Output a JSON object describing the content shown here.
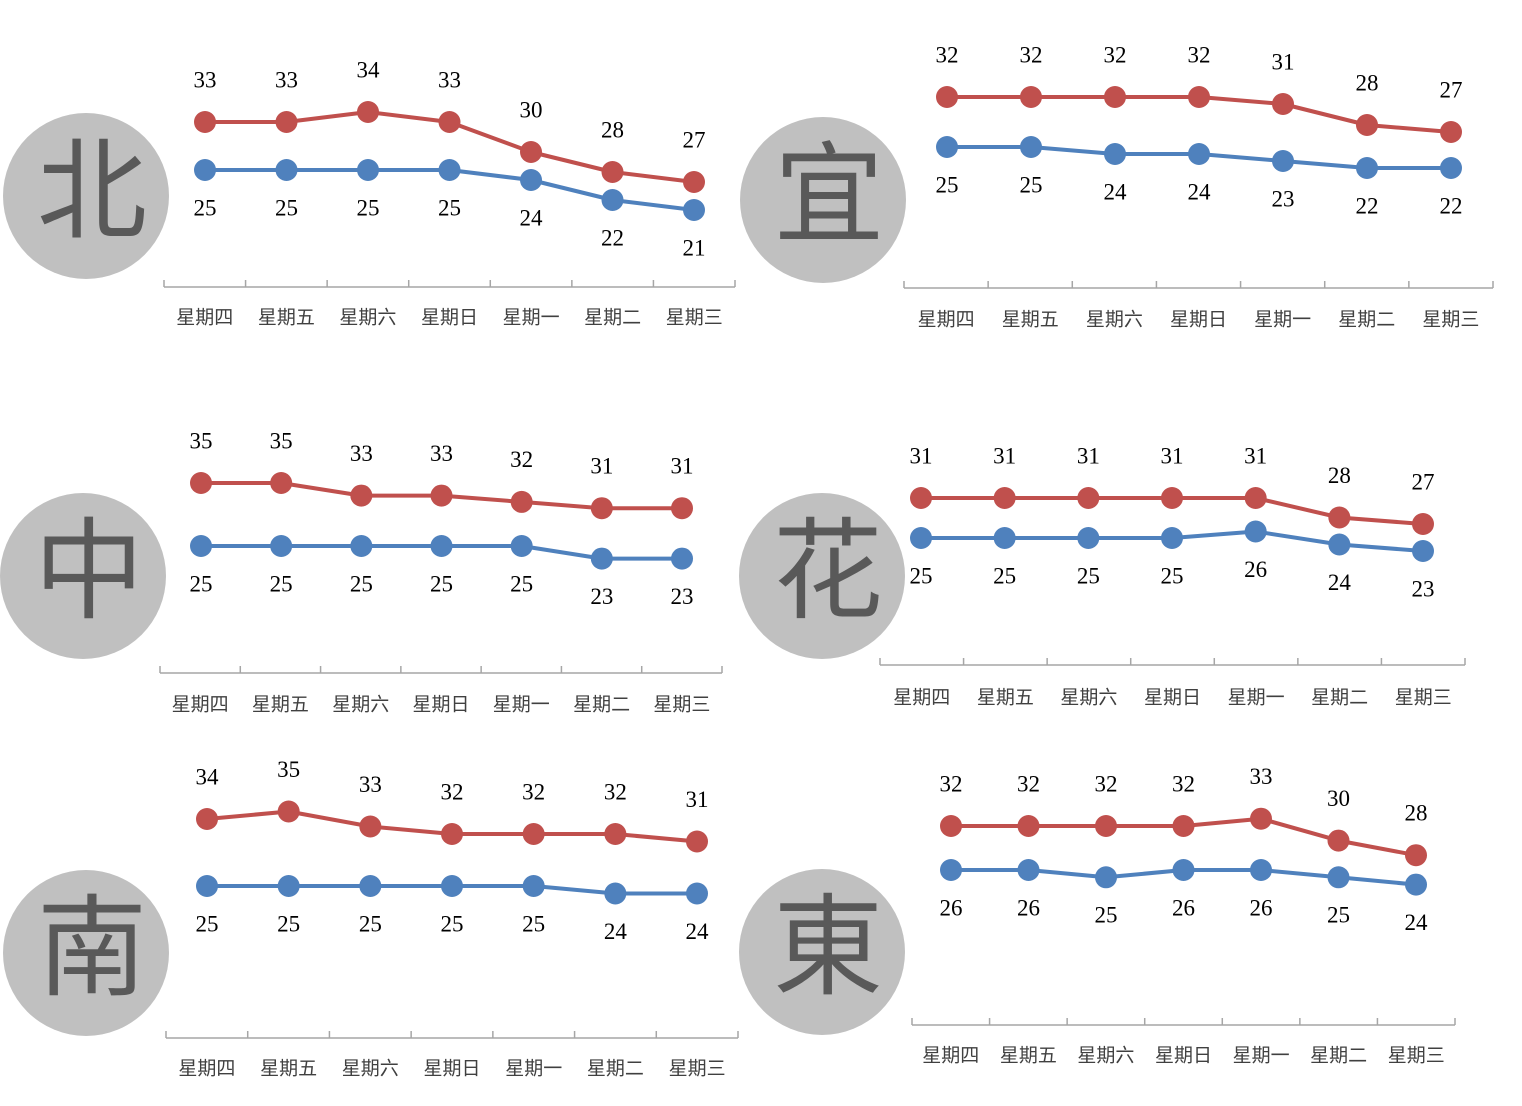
{
  "colors": {
    "high": "#c0504d",
    "low": "#4f81bd",
    "badge_fill": "#c0c0c0",
    "badge_text": "#595959",
    "axis": "#a6a6a6"
  },
  "chart_data": [
    {
      "type": "line",
      "region": "北",
      "categories": [
        "星期四",
        "星期五",
        "星期六",
        "星期日",
        "星期一",
        "星期二",
        "星期三"
      ],
      "series": [
        {
          "values": [
            33,
            33,
            34,
            33,
            30,
            28,
            27
          ]
        },
        {
          "values": [
            25,
            25,
            25,
            25,
            24,
            22,
            21
          ]
        }
      ]
    },
    {
      "type": "line",
      "region": "宜",
      "categories": [
        "星期四",
        "星期五",
        "星期六",
        "星期日",
        "星期一",
        "星期二",
        "星期三"
      ],
      "series": [
        {
          "values": [
            32,
            32,
            32,
            32,
            31,
            28,
            27
          ]
        },
        {
          "values": [
            25,
            25,
            24,
            24,
            23,
            22,
            22
          ]
        }
      ]
    },
    {
      "type": "line",
      "region": "中",
      "categories": [
        "星期四",
        "星期五",
        "星期六",
        "星期日",
        "星期一",
        "星期二",
        "星期三"
      ],
      "series": [
        {
          "values": [
            35,
            35,
            33,
            33,
            32,
            31,
            31
          ]
        },
        {
          "values": [
            25,
            25,
            25,
            25,
            25,
            23,
            23
          ]
        }
      ]
    },
    {
      "type": "line",
      "region": "花",
      "categories": [
        "星期四",
        "星期五",
        "星期六",
        "星期日",
        "星期一",
        "星期二",
        "星期三"
      ],
      "series": [
        {
          "values": [
            31,
            31,
            31,
            31,
            31,
            28,
            27
          ]
        },
        {
          "values": [
            25,
            25,
            25,
            25,
            26,
            24,
            23
          ]
        }
      ]
    },
    {
      "type": "line",
      "region": "南",
      "categories": [
        "星期四",
        "星期五",
        "星期六",
        "星期日",
        "星期一",
        "星期二",
        "星期三"
      ],
      "series": [
        {
          "values": [
            34,
            35,
            33,
            32,
            32,
            32,
            31
          ]
        },
        {
          "values": [
            25,
            25,
            25,
            25,
            25,
            24,
            24
          ]
        }
      ]
    },
    {
      "type": "line",
      "region": "東",
      "categories": [
        "星期四",
        "星期五",
        "星期六",
        "星期日",
        "星期一",
        "星期二",
        "星期三"
      ],
      "series": [
        {
          "values": [
            32,
            32,
            32,
            32,
            33,
            30,
            28
          ]
        },
        {
          "values": [
            26,
            26,
            25,
            26,
            26,
            25,
            24
          ]
        }
      ]
    }
  ]
}
